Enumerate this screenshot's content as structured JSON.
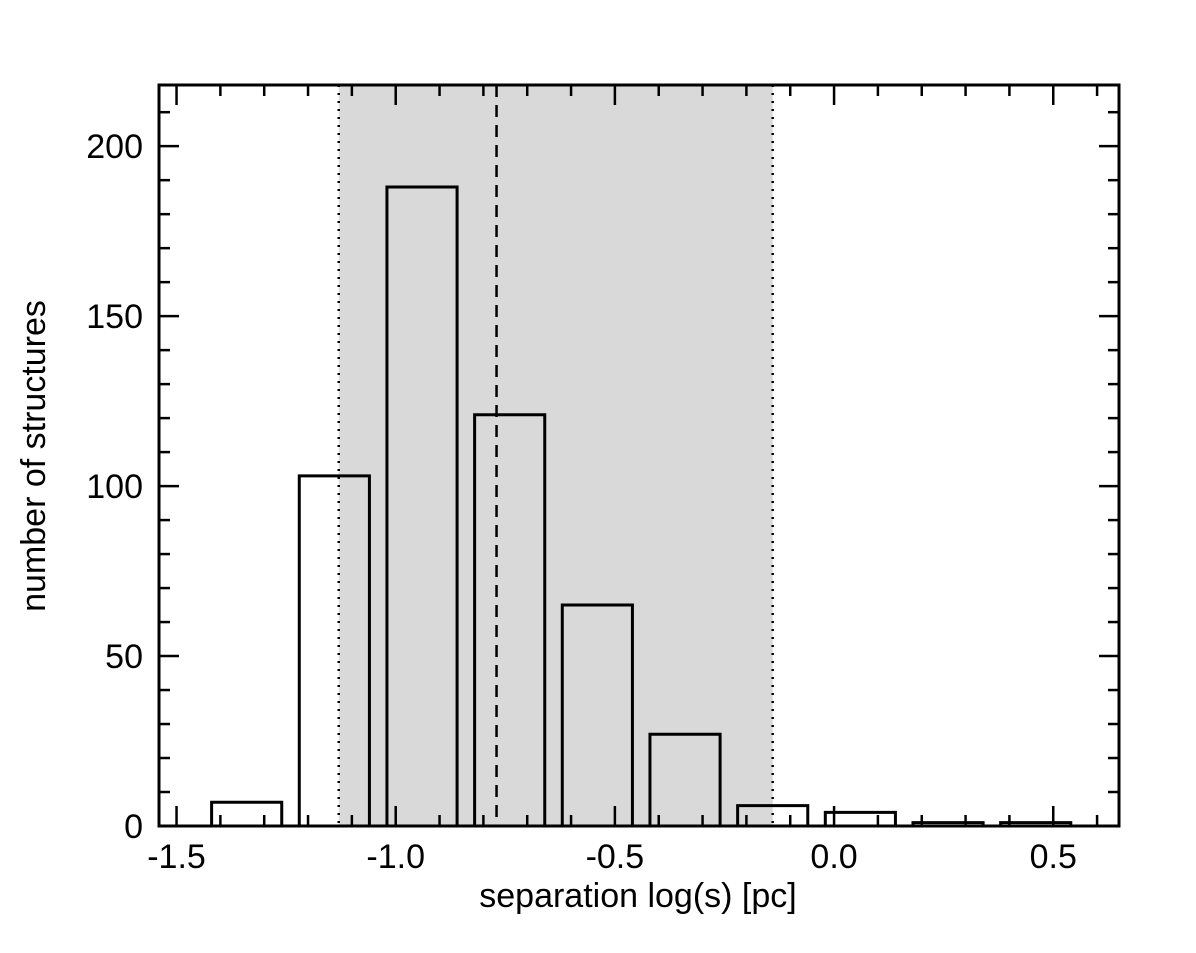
{
  "chart_data": {
    "type": "bar",
    "title": "",
    "xlabel": "separation log(s) [pc]",
    "ylabel": "number of structures",
    "xlim": [
      -1.54,
      0.65
    ],
    "ylim": [
      0,
      218
    ],
    "x_ticks": [
      -1.5,
      -1.0,
      -0.5,
      0.0,
      0.5
    ],
    "x_tick_labels": [
      "-1.5",
      "-1.0",
      "-0.5",
      "0.0",
      "0.5"
    ],
    "y_ticks": [
      0,
      50,
      100,
      150,
      200
    ],
    "y_tick_labels": [
      "0",
      "50",
      "100",
      "150",
      "200"
    ],
    "bars": [
      {
        "x0": -1.42,
        "x1": -1.26,
        "value": 7
      },
      {
        "x0": -1.22,
        "x1": -1.06,
        "value": 103
      },
      {
        "x0": -1.02,
        "x1": -0.86,
        "value": 188
      },
      {
        "x0": -0.82,
        "x1": -0.66,
        "value": 121
      },
      {
        "x0": -0.62,
        "x1": -0.46,
        "value": 65
      },
      {
        "x0": -0.42,
        "x1": -0.26,
        "value": 27
      },
      {
        "x0": -0.22,
        "x1": -0.06,
        "value": 6
      },
      {
        "x0": -0.02,
        "x1": 0.14,
        "value": 4
      },
      {
        "x0": 0.18,
        "x1": 0.34,
        "value": 1
      },
      {
        "x0": 0.38,
        "x1": 0.54,
        "value": 1
      }
    ],
    "shaded_range": [
      -1.13,
      -0.14
    ],
    "dotted_lines": [
      -1.13,
      -0.14
    ],
    "dashed_line": -0.77,
    "grid": false,
    "colors": {
      "shade": "#d9d9d9",
      "bar_edge": "#000000",
      "axis": "#000000"
    }
  }
}
